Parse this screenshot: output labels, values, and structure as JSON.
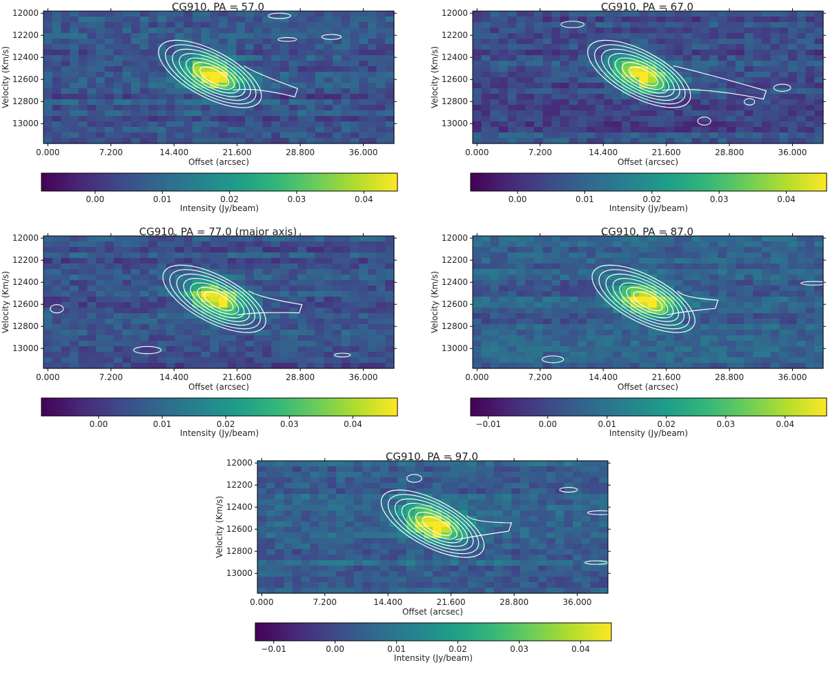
{
  "chart_data": [
    {
      "type": "heatmap",
      "title": "CG910, PA = 57.0",
      "xlabel": "Offset (arcsec)",
      "ylabel": "Velocity (Km/s)",
      "x_ticks": [
        "0.000",
        "7.200",
        "14.400",
        "21.600",
        "28.800",
        "36.000"
      ],
      "y_ticks": [
        "12000",
        "12200",
        "12400",
        "12600",
        "12800",
        "13000"
      ],
      "xlim": [
        -0.5,
        39.5
      ],
      "ylim": [
        11980,
        13180
      ],
      "colorbar": {
        "label": "Intensity (Jy/beam)",
        "ticks": [
          "0.00",
          "0.01",
          "0.02",
          "0.03",
          "0.04"
        ],
        "range": [
          -0.008,
          0.045
        ]
      },
      "source": {
        "x_center": 18.5,
        "v_top": 12440,
        "v_bottom": 12660,
        "peak": 0.044
      },
      "tail": {
        "x_end": 28.5,
        "v_end": 12720
      }
    },
    {
      "type": "heatmap",
      "title": "CG910, PA = 67.0",
      "xlabel": "Offset (arcsec)",
      "ylabel": "Velocity (Km/s)",
      "x_ticks": [
        "0.000",
        "7.200",
        "14.400",
        "21.600",
        "28.800",
        "36.000"
      ],
      "y_ticks": [
        "12000",
        "12200",
        "12400",
        "12600",
        "12800",
        "13000"
      ],
      "xlim": [
        -0.5,
        39.5
      ],
      "ylim": [
        11980,
        13180
      ],
      "colorbar": {
        "label": "Intensity (Jy/beam)",
        "ticks": [
          "0.00",
          "0.01",
          "0.02",
          "0.03",
          "0.04"
        ],
        "range": [
          -0.007,
          0.046
        ]
      },
      "source": {
        "x_center": 18.5,
        "v_top": 12440,
        "v_bottom": 12660,
        "peak": 0.045
      },
      "tail": {
        "x_end": 33.0,
        "v_end": 12740
      }
    },
    {
      "type": "heatmap",
      "title": "CG910, PA = 77.0 (major axis)",
      "xlabel": "Offset (arcsec)",
      "ylabel": "Velocity (Km/s)",
      "x_ticks": [
        "0.000",
        "7.200",
        "14.400",
        "21.600",
        "28.800",
        "36.000"
      ],
      "y_ticks": [
        "12000",
        "12200",
        "12400",
        "12600",
        "12800",
        "13000"
      ],
      "xlim": [
        -0.5,
        39.5
      ],
      "ylim": [
        11980,
        13180
      ],
      "colorbar": {
        "label": "Intensity (Jy/beam)",
        "ticks": [
          "0.00",
          "0.01",
          "0.02",
          "0.03",
          "0.04"
        ],
        "range": [
          -0.009,
          0.047
        ]
      },
      "source": {
        "x_center": 19.0,
        "v_top": 12440,
        "v_bottom": 12660,
        "peak": 0.046
      },
      "tail": {
        "x_end": 29.0,
        "v_end": 12640
      }
    },
    {
      "type": "heatmap",
      "title": "CG910, PA = 87.0",
      "xlabel": "Offset (arcsec)",
      "ylabel": "Velocity (Km/s)",
      "x_ticks": [
        "0.000",
        "7.200",
        "14.400",
        "21.600",
        "28.800",
        "36.000"
      ],
      "y_ticks": [
        "12000",
        "12200",
        "12400",
        "12600",
        "12800",
        "13000"
      ],
      "xlim": [
        -0.5,
        39.5
      ],
      "ylim": [
        11980,
        13180
      ],
      "colorbar": {
        "label": "Intensity (Jy/beam)",
        "ticks": [
          "−0.01",
          "0.00",
          "0.01",
          "0.02",
          "0.03",
          "0.04"
        ],
        "range": [
          -0.013,
          0.047
        ]
      },
      "source": {
        "x_center": 19.0,
        "v_top": 12440,
        "v_bottom": 12660,
        "peak": 0.046
      },
      "tail": {
        "x_end": 27.5,
        "v_end": 12600
      }
    },
    {
      "type": "heatmap",
      "title": "CG910, PA = 97.0",
      "xlabel": "Offset (arcsec)",
      "ylabel": "Velocity (Km/s)",
      "x_ticks": [
        "0.000",
        "7.200",
        "14.400",
        "21.600",
        "28.800",
        "36.000"
      ],
      "y_ticks": [
        "12000",
        "12200",
        "12400",
        "12600",
        "12800",
        "13000"
      ],
      "xlim": [
        -0.5,
        39.5
      ],
      "ylim": [
        11980,
        13180
      ],
      "colorbar": {
        "label": "Intensity (Jy/beam)",
        "ticks": [
          "−0.01",
          "0.00",
          "0.01",
          "0.02",
          "0.03",
          "0.04"
        ],
        "range": [
          -0.013,
          0.045
        ]
      },
      "source": {
        "x_center": 19.5,
        "v_top": 12440,
        "v_bottom": 12660,
        "peak": 0.044
      },
      "tail": {
        "x_end": 28.5,
        "v_end": 12580
      }
    }
  ]
}
